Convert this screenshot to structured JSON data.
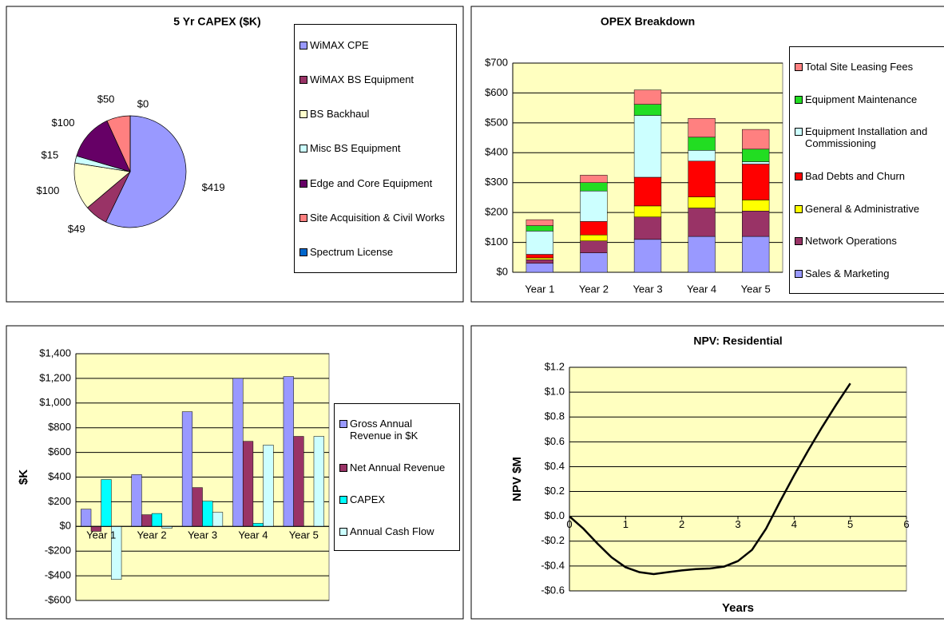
{
  "chart_data": [
    {
      "type": "pie",
      "title": "5 Yr CAPEX ($K)",
      "categories": [
        "WiMAX CPE",
        "WiMAX BS Equipment",
        "BS Backhaul",
        "Misc BS Equipment",
        "Edge and Core Equipment",
        "Site Acquisition & Civil Works",
        "Spectrum License"
      ],
      "values": [
        419,
        49,
        100,
        15,
        100,
        50,
        0
      ],
      "value_labels": [
        "$419",
        "$49",
        "$100",
        "$15",
        "$100",
        "$50",
        "$0"
      ],
      "colors": [
        "#9999ff",
        "#993366",
        "#ffffcc",
        "#ccffff",
        "#660066",
        "#ff8080",
        "#0066cc"
      ]
    },
    {
      "type": "stacked_bar",
      "title": "OPEX Breakdown",
      "categories": [
        "Year 1",
        "Year 2",
        "Year 3",
        "Year 4",
        "Year 5"
      ],
      "series": [
        {
          "name": "Sales & Marketing",
          "color": "#9999ff",
          "values": [
            30,
            65,
            110,
            120,
            120
          ]
        },
        {
          "name": "Network Operations",
          "color": "#993366",
          "values": [
            12,
            40,
            75,
            95,
            85
          ]
        },
        {
          "name": "General & Administrative",
          "color": "#ffff00",
          "values": [
            6,
            20,
            37,
            37,
            37
          ]
        },
        {
          "name": "Bad Debts and Churn",
          "color": "#ff0000",
          "values": [
            12,
            45,
            96,
            120,
            120
          ]
        },
        {
          "name": "Equipment Installation and Commissioning",
          "color": "#ccffff",
          "values": [
            78,
            102,
            207,
            36,
            8
          ]
        },
        {
          "name": "Equipment Maintenance",
          "color": "#22dd22",
          "values": [
            18,
            28,
            37,
            44,
            42
          ]
        },
        {
          "name": "Total Site Leasing Fees",
          "color": "#ff8080",
          "values": [
            20,
            25,
            48,
            63,
            66
          ]
        }
      ],
      "ylim": [
        0,
        700
      ],
      "yticks": [
        {
          "value": 0,
          "label": "$0"
        },
        {
          "value": 100,
          "label": "$100"
        },
        {
          "value": 200,
          "label": "$200"
        },
        {
          "value": 300,
          "label": "$300"
        },
        {
          "value": 400,
          "label": "$400"
        },
        {
          "value": 500,
          "label": "$500"
        },
        {
          "value": 600,
          "label": "$600"
        },
        {
          "value": 700,
          "label": "$700"
        }
      ],
      "grid": true
    },
    {
      "type": "grouped_bar",
      "ylabel": "$K",
      "categories": [
        "Year 1",
        "Year 2",
        "Year 3",
        "Year 4",
        "Year 5"
      ],
      "series": [
        {
          "name": "Gross Annual Revenue in $K",
          "color": "#9999ff",
          "values": [
            140,
            420,
            930,
            1200,
            1215
          ]
        },
        {
          "name": "Net Annual Revenue",
          "color": "#993366",
          "values": [
            -40,
            95,
            315,
            690,
            730
          ]
        },
        {
          "name": "CAPEX",
          "color": "#00ffff",
          "values": [
            380,
            105,
            205,
            25,
            0
          ]
        },
        {
          "name": "Annual Cash Flow",
          "color": "#ccffff",
          "values": [
            -430,
            -15,
            115,
            660,
            730
          ]
        }
      ],
      "ylim": [
        -600,
        1400
      ],
      "yticks": [
        {
          "value": -600,
          "label": "-$600"
        },
        {
          "value": -400,
          "label": "-$400"
        },
        {
          "value": -200,
          "label": "-$200"
        },
        {
          "value": 0,
          "label": "$0"
        },
        {
          "value": 200,
          "label": "$200"
        },
        {
          "value": 400,
          "label": "$400"
        },
        {
          "value": 600,
          "label": "$600"
        },
        {
          "value": 800,
          "label": "$800"
        },
        {
          "value": 1000,
          "label": "$1,000"
        },
        {
          "value": 1200,
          "label": "$1,200"
        },
        {
          "value": 1400,
          "label": "$1,400"
        }
      ],
      "grid": true
    },
    {
      "type": "line",
      "title": "NPV: Residential",
      "xlabel": "Years",
      "ylabel": "NPV $M",
      "color": "#000000",
      "x": [
        0,
        0.25,
        0.5,
        0.75,
        1,
        1.25,
        1.5,
        1.75,
        2,
        2.25,
        2.5,
        2.75,
        3,
        3.25,
        3.5,
        3.75,
        4,
        4.25,
        4.5,
        4.75,
        5
      ],
      "values": [
        0,
        -0.1,
        -0.22,
        -0.33,
        -0.41,
        -0.45,
        -0.465,
        -0.45,
        -0.435,
        -0.425,
        -0.42,
        -0.405,
        -0.36,
        -0.27,
        -0.1,
        0.12,
        0.33,
        0.53,
        0.72,
        0.9,
        1.07
      ],
      "xlim": [
        0,
        6
      ],
      "xticks": [
        0,
        1,
        2,
        3,
        4,
        5,
        6
      ],
      "ylim": [
        -0.6,
        1.2
      ],
      "yticks": [
        {
          "value": -0.6,
          "label": "-$0.6"
        },
        {
          "value": -0.4,
          "label": "-$0.4"
        },
        {
          "value": -0.2,
          "label": "-$0.2"
        },
        {
          "value": 0,
          "label": "$0.0"
        },
        {
          "value": 0.2,
          "label": "$0.2"
        },
        {
          "value": 0.4,
          "label": "$0.4"
        },
        {
          "value": 0.6,
          "label": "$0.6"
        },
        {
          "value": 0.8,
          "label": "$0.8"
        },
        {
          "value": 1,
          "label": "$1.0"
        },
        {
          "value": 1.2,
          "label": "$1.2"
        }
      ],
      "grid": true
    }
  ]
}
